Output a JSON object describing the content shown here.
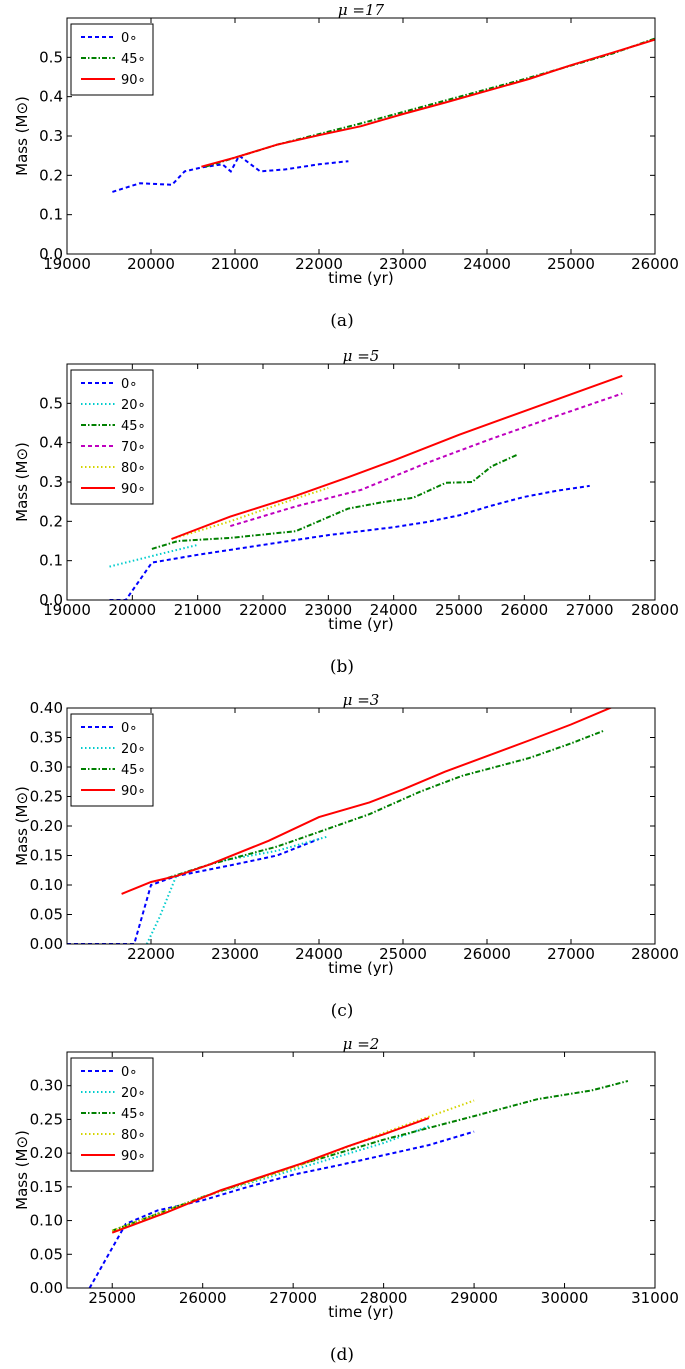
{
  "chart_data": [
    {
      "type": "line",
      "caption": "(a)",
      "title": "μ =17",
      "xlabel": "time (yr)",
      "ylabel": "Mass (M⊙)",
      "xlim": [
        19000,
        26000
      ],
      "ylim": [
        0.0,
        0.6
      ],
      "xticks": [
        19000,
        20000,
        21000,
        22000,
        23000,
        24000,
        25000,
        26000
      ],
      "yticks": [
        "0.0",
        "0.1",
        "0.2",
        "0.3",
        "0.4",
        "0.5"
      ],
      "ytick_values": [
        0.0,
        0.1,
        0.2,
        0.3,
        0.4,
        0.5
      ],
      "grid": false,
      "legend_position": "top-left",
      "series": [
        {
          "name": "0∘",
          "color": "#0000ff",
          "style": "dashed",
          "x": [
            19540,
            19870,
            20250,
            20400,
            20600,
            20850,
            20950,
            21050,
            21300,
            21600,
            22000,
            22350
          ],
          "y": [
            0.158,
            0.18,
            0.176,
            0.21,
            0.22,
            0.228,
            0.21,
            0.25,
            0.21,
            0.215,
            0.228,
            0.236
          ]
        },
        {
          "name": "45∘",
          "color": "#008000",
          "style": "dashdot",
          "x": [
            20650,
            21500,
            22500,
            23500,
            24500,
            25500,
            26000
          ],
          "y": [
            0.222,
            0.278,
            0.332,
            0.39,
            0.448,
            0.51,
            0.548
          ]
        },
        {
          "name": "90∘",
          "color": "#ff0000",
          "style": "solid",
          "x": [
            20600,
            21000,
            21500,
            22000,
            22500,
            23000,
            23500,
            24000,
            24500,
            25000,
            25500,
            26000
          ],
          "y": [
            0.222,
            0.245,
            0.278,
            0.302,
            0.325,
            0.356,
            0.385,
            0.415,
            0.445,
            0.48,
            0.512,
            0.545
          ]
        }
      ]
    },
    {
      "type": "line",
      "caption": "(b)",
      "title": "μ =5",
      "xlabel": "time (yr)",
      "ylabel": "Mass (M⊙)",
      "xlim": [
        19000,
        28000
      ],
      "ylim": [
        0.0,
        0.6
      ],
      "xticks": [
        19000,
        20000,
        21000,
        22000,
        23000,
        24000,
        25000,
        26000,
        27000,
        28000
      ],
      "yticks": [
        "0.0",
        "0.1",
        "0.2",
        "0.3",
        "0.4",
        "0.5"
      ],
      "ytick_values": [
        0.0,
        0.1,
        0.2,
        0.3,
        0.4,
        0.5
      ],
      "grid": false,
      "legend_position": "top-left",
      "series": [
        {
          "name": "0∘",
          "color": "#0000ff",
          "style": "dashed",
          "x": [
            19650,
            19900,
            20300,
            21000,
            22000,
            23000,
            24000,
            24500,
            25000,
            25500,
            26000,
            26500,
            27000
          ],
          "y": [
            0.0,
            0.0,
            0.095,
            0.115,
            0.14,
            0.165,
            0.185,
            0.198,
            0.215,
            0.24,
            0.262,
            0.278,
            0.29
          ]
        },
        {
          "name": "20∘",
          "color": "#00cccc",
          "style": "dotted",
          "x": [
            19650,
            20500,
            21000
          ],
          "y": [
            0.085,
            0.12,
            0.14
          ]
        },
        {
          "name": "45∘",
          "color": "#008000",
          "style": "dashdot",
          "x": [
            20300,
            20700,
            21500,
            22500,
            23300,
            23800,
            24300,
            24800,
            25200,
            25500,
            25900
          ],
          "y": [
            0.13,
            0.15,
            0.158,
            0.175,
            0.232,
            0.248,
            0.26,
            0.298,
            0.3,
            0.34,
            0.37
          ]
        },
        {
          "name": "70∘",
          "color": "#bf00bf",
          "style": "dashed",
          "x": [
            21500,
            22500,
            23500,
            24500,
            25500,
            26500,
            27500
          ],
          "y": [
            0.188,
            0.238,
            0.28,
            0.348,
            0.41,
            0.468,
            0.525
          ]
        },
        {
          "name": "80∘",
          "color": "#d4d400",
          "style": "dotted",
          "x": [
            20600,
            21500,
            22500,
            23000
          ],
          "y": [
            0.155,
            0.2,
            0.258,
            0.285
          ]
        },
        {
          "name": "90∘",
          "color": "#ff0000",
          "style": "solid",
          "x": [
            20600,
            21500,
            22500,
            23300,
            24000,
            25000,
            26000,
            27000,
            27500
          ],
          "y": [
            0.155,
            0.212,
            0.265,
            0.312,
            0.355,
            0.42,
            0.48,
            0.54,
            0.57
          ]
        }
      ]
    },
    {
      "type": "line",
      "caption": "(c)",
      "title": "μ =3",
      "xlabel": "time (yr)",
      "ylabel": "Mass (M⊙)",
      "xlim": [
        21000,
        28000
      ],
      "ylim": [
        0.0,
        0.4
      ],
      "xticks": [
        22000,
        23000,
        24000,
        25000,
        26000,
        27000,
        28000
      ],
      "yticks": [
        "0.00",
        "0.05",
        "0.10",
        "0.15",
        "0.20",
        "0.25",
        "0.30",
        "0.35",
        "0.40"
      ],
      "ytick_values": [
        0.0,
        0.05,
        0.1,
        0.15,
        0.2,
        0.25,
        0.3,
        0.35,
        0.4
      ],
      "grid": false,
      "legend_position": "top-left",
      "series": [
        {
          "name": "0∘",
          "color": "#0000ff",
          "style": "dashed",
          "x": [
            21000,
            21800,
            22000,
            22300,
            23000,
            23500,
            24000
          ],
          "y": [
            0.0,
            0.0,
            0.1,
            0.115,
            0.135,
            0.15,
            0.178
          ]
        },
        {
          "name": "20∘",
          "color": "#00cccc",
          "style": "dotted",
          "x": [
            21950,
            22100,
            22300,
            22800,
            23500,
            24100
          ],
          "y": [
            0.0,
            0.045,
            0.115,
            0.14,
            0.158,
            0.182
          ]
        },
        {
          "name": "45∘",
          "color": "#008000",
          "style": "dashdot",
          "x": [
            22200,
            22700,
            23500,
            24000,
            24600,
            25200,
            25700,
            26500,
            27000,
            27400
          ],
          "y": [
            0.112,
            0.135,
            0.165,
            0.19,
            0.22,
            0.258,
            0.285,
            0.315,
            0.34,
            0.362
          ]
        },
        {
          "name": "90∘",
          "color": "#ff0000",
          "style": "solid",
          "x": [
            21650,
            22000,
            22300,
            22700,
            23400,
            24000,
            24600,
            25000,
            25500,
            26500,
            27000,
            27500
          ],
          "y": [
            0.085,
            0.105,
            0.115,
            0.135,
            0.175,
            0.215,
            0.24,
            0.262,
            0.292,
            0.345,
            0.372,
            0.402
          ]
        }
      ]
    },
    {
      "type": "line",
      "caption": "(d)",
      "title": "μ =2",
      "xlabel": "time (yr)",
      "ylabel": "Mass (M⊙)",
      "xlim": [
        24500,
        31000
      ],
      "ylim": [
        0.0,
        0.35
      ],
      "xticks": [
        25000,
        26000,
        27000,
        28000,
        29000,
        30000,
        31000
      ],
      "yticks": [
        "0.00",
        "0.05",
        "0.10",
        "0.15",
        "0.20",
        "0.25",
        "0.30"
      ],
      "ytick_values": [
        0.0,
        0.05,
        0.1,
        0.15,
        0.2,
        0.25,
        0.3
      ],
      "grid": false,
      "legend_position": "top-left",
      "series": [
        {
          "name": "0∘",
          "color": "#0000ff",
          "style": "dashed",
          "x": [
            24750,
            25150,
            25500,
            26000,
            26500,
            27000,
            27500,
            28000,
            28500,
            29000
          ],
          "y": [
            0.0,
            0.095,
            0.115,
            0.13,
            0.15,
            0.168,
            0.182,
            0.197,
            0.212,
            0.232
          ]
        },
        {
          "name": "20∘",
          "color": "#00cccc",
          "style": "dotted",
          "x": [
            25000,
            26000,
            27000,
            28000,
            28500
          ],
          "y": [
            0.085,
            0.135,
            0.175,
            0.215,
            0.24
          ]
        },
        {
          "name": "45∘",
          "color": "#008000",
          "style": "dashdot",
          "x": [
            25000,
            26000,
            27000,
            28000,
            29000,
            29700,
            30300,
            30700
          ],
          "y": [
            0.085,
            0.135,
            0.18,
            0.22,
            0.255,
            0.28,
            0.293,
            0.307
          ]
        },
        {
          "name": "80∘",
          "color": "#d4d400",
          "style": "dotted",
          "x": [
            25000,
            26000,
            27000,
            28000,
            29000
          ],
          "y": [
            0.085,
            0.135,
            0.178,
            0.23,
            0.278
          ]
        },
        {
          "name": "90∘",
          "color": "#ff0000",
          "style": "solid",
          "x": [
            25000,
            25600,
            26200,
            27100,
            27600,
            28000,
            28500
          ],
          "y": [
            0.082,
            0.112,
            0.145,
            0.185,
            0.21,
            0.228,
            0.252
          ]
        }
      ]
    }
  ]
}
